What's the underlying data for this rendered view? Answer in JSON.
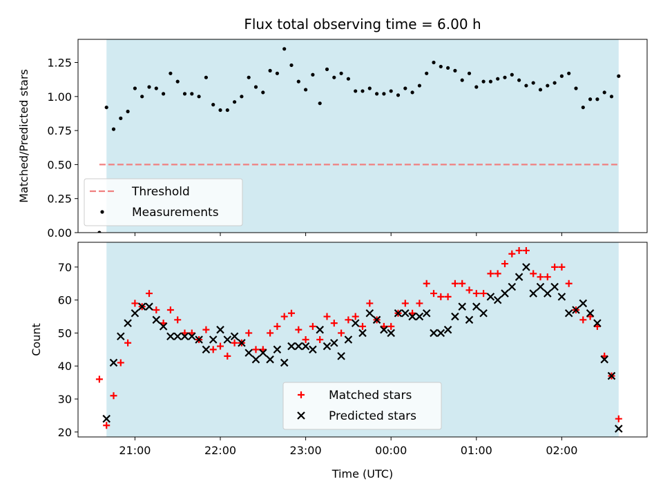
{
  "chart_data": [
    {
      "type": "scatter",
      "title": "Flux total observing time = 6.00 h",
      "ylabel": "Matched/Predicted stars",
      "xlabel": "",
      "xlim": [
        "2024-01-01T20:20",
        "2024-01-02T03:00"
      ],
      "ylim": [
        0,
        1.42
      ],
      "yticks": [
        0.0,
        0.25,
        0.5,
        0.75,
        1.0,
        1.25
      ],
      "yticklabels": [
        "0.00",
        "0.25",
        "0.50",
        "0.75",
        "1.00",
        "1.25"
      ],
      "shaded_region": [
        "2024-01-01T20:40",
        "2024-01-02T02:40"
      ],
      "shade_color": "#add8e6",
      "grid": false,
      "legend_position": "lower-left",
      "series": [
        {
          "name": "Threshold",
          "kind": "dashed-line",
          "color": "#f08080",
          "x": [
            "2024-01-01T20:35",
            "2024-01-02T02:40"
          ],
          "y": [
            0.5,
            0.5
          ]
        },
        {
          "name": "Measurements",
          "kind": "dot",
          "color": "#000000",
          "x": [
            "20:35",
            "20:40",
            "20:45",
            "20:50",
            "20:55",
            "21:00",
            "21:05",
            "21:10",
            "21:15",
            "21:20",
            "21:25",
            "21:30",
            "21:35",
            "21:40",
            "21:45",
            "21:50",
            "21:55",
            "22:00",
            "22:05",
            "22:10",
            "22:15",
            "22:20",
            "22:25",
            "22:30",
            "22:35",
            "22:40",
            "22:45",
            "22:50",
            "22:55",
            "23:00",
            "23:05",
            "23:10",
            "23:15",
            "23:20",
            "23:25",
            "23:30",
            "23:35",
            "23:40",
            "23:45",
            "23:50",
            "23:55",
            "00:00",
            "00:05",
            "00:10",
            "00:15",
            "00:20",
            "00:25",
            "00:30",
            "00:35",
            "00:40",
            "00:45",
            "00:50",
            "00:55",
            "01:00",
            "01:05",
            "01:10",
            "01:15",
            "01:20",
            "01:25",
            "01:30",
            "01:35",
            "01:40",
            "01:45",
            "01:50",
            "01:55",
            "02:00",
            "02:05",
            "02:10",
            "02:15",
            "02:20",
            "02:25",
            "02:30",
            "02:35",
            "02:40"
          ],
          "y": [
            0.0,
            0.92,
            0.76,
            0.84,
            0.89,
            1.06,
            1.0,
            1.07,
            1.06,
            1.02,
            1.17,
            1.11,
            1.02,
            1.02,
            1.0,
            1.14,
            0.94,
            0.9,
            0.9,
            0.96,
            1.0,
            1.14,
            1.07,
            1.03,
            1.19,
            1.17,
            1.35,
            1.23,
            1.11,
            1.05,
            1.16,
            0.95,
            1.2,
            1.14,
            1.17,
            1.13,
            1.04,
            1.04,
            1.06,
            1.02,
            1.02,
            1.04,
            1.01,
            1.06,
            1.03,
            1.08,
            1.17,
            1.25,
            1.22,
            1.21,
            1.19,
            1.12,
            1.17,
            1.07,
            1.11,
            1.11,
            1.13,
            1.14,
            1.16,
            1.12,
            1.08,
            1.1,
            1.05,
            1.08,
            1.1,
            1.15,
            1.17,
            1.06,
            0.92,
            0.98,
            0.98,
            1.03,
            1.0,
            1.15
          ]
        }
      ]
    },
    {
      "type": "scatter",
      "title": "",
      "ylabel": "Count",
      "xlabel": "Time (UTC)",
      "xlim": [
        "2024-01-01T20:20",
        "2024-01-02T03:00"
      ],
      "ylim": [
        18.5,
        77.5
      ],
      "yticks": [
        20,
        30,
        40,
        50,
        60,
        70
      ],
      "yticklabels": [
        "20",
        "30",
        "40",
        "50",
        "60",
        "70"
      ],
      "xticks": [
        "2024-01-01T21:00",
        "2024-01-01T22:00",
        "2024-01-01T23:00",
        "2024-01-02T00:00",
        "2024-01-02T01:00",
        "2024-01-02T02:00"
      ],
      "xticklabels": [
        "21:00",
        "22:00",
        "23:00",
        "00:00",
        "01:00",
        "02:00"
      ],
      "shaded_region": [
        "2024-01-01T20:40",
        "2024-01-02T02:40"
      ],
      "shade_color": "#add8e6",
      "grid": false,
      "legend_position": "lower-center",
      "series": [
        {
          "name": "Matched stars",
          "kind": "plus",
          "color": "#ff0000",
          "x": [
            "20:35",
            "20:40",
            "20:45",
            "20:50",
            "20:55",
            "21:00",
            "21:05",
            "21:10",
            "21:15",
            "21:20",
            "21:25",
            "21:30",
            "21:35",
            "21:40",
            "21:45",
            "21:50",
            "21:55",
            "22:00",
            "22:05",
            "22:10",
            "22:15",
            "22:20",
            "22:25",
            "22:30",
            "22:35",
            "22:40",
            "22:45",
            "22:50",
            "22:55",
            "23:00",
            "23:05",
            "23:10",
            "23:15",
            "23:20",
            "23:25",
            "23:30",
            "23:35",
            "23:40",
            "23:45",
            "23:50",
            "23:55",
            "00:00",
            "00:05",
            "00:10",
            "00:15",
            "00:20",
            "00:25",
            "00:30",
            "00:35",
            "00:40",
            "00:45",
            "00:50",
            "00:55",
            "01:00",
            "01:05",
            "01:10",
            "01:15",
            "01:20",
            "01:25",
            "01:30",
            "01:35",
            "01:40",
            "01:45",
            "01:50",
            "01:55",
            "02:00",
            "02:05",
            "02:10",
            "02:15",
            "02:20",
            "02:25",
            "02:30",
            "02:35",
            "02:40"
          ],
          "y": [
            36,
            22,
            31,
            41,
            47,
            59,
            58,
            62,
            57,
            53,
            57,
            54,
            50,
            50,
            48,
            51,
            45,
            46,
            43,
            47,
            47,
            50,
            45,
            45,
            50,
            52,
            55,
            56,
            51,
            48,
            52,
            48,
            55,
            53,
            50,
            54,
            55,
            52,
            59,
            54,
            52,
            52,
            56,
            59,
            56,
            59,
            65,
            62,
            61,
            61,
            65,
            65,
            63,
            62,
            62,
            68,
            68,
            71,
            74,
            75,
            75,
            68,
            67,
            67,
            70,
            70,
            65,
            57,
            54,
            55,
            52,
            43,
            37,
            24
          ]
        },
        {
          "name": "Predicted stars",
          "kind": "x",
          "color": "#000000",
          "x": [
            "20:40",
            "20:45",
            "20:50",
            "20:55",
            "21:00",
            "21:05",
            "21:10",
            "21:15",
            "21:20",
            "21:25",
            "21:30",
            "21:35",
            "21:40",
            "21:45",
            "21:50",
            "21:55",
            "22:00",
            "22:05",
            "22:10",
            "22:15",
            "22:20",
            "22:25",
            "22:30",
            "22:35",
            "22:40",
            "22:45",
            "22:50",
            "22:55",
            "23:00",
            "23:05",
            "23:10",
            "23:15",
            "23:20",
            "23:25",
            "23:30",
            "23:35",
            "23:40",
            "23:45",
            "23:50",
            "23:55",
            "00:00",
            "00:05",
            "00:10",
            "00:15",
            "00:20",
            "00:25",
            "00:30",
            "00:35",
            "00:40",
            "00:45",
            "00:50",
            "00:55",
            "01:00",
            "01:05",
            "01:10",
            "01:15",
            "01:20",
            "01:25",
            "01:30",
            "01:35",
            "01:40",
            "01:45",
            "01:50",
            "01:55",
            "02:00",
            "02:05",
            "02:10",
            "02:15",
            "02:20",
            "02:25",
            "02:30",
            "02:35",
            "02:40"
          ],
          "y": [
            24,
            41,
            49,
            53,
            56,
            58,
            58,
            54,
            52,
            49,
            49,
            49,
            49,
            48,
            45,
            48,
            51,
            48,
            49,
            47,
            44,
            42,
            44,
            42,
            45,
            41,
            46,
            46,
            46,
            45,
            51,
            46,
            47,
            43,
            48,
            53,
            50,
            56,
            54,
            51,
            50,
            56,
            56,
            55,
            55,
            56,
            50,
            50,
            51,
            55,
            58,
            54,
            58,
            56,
            61,
            60,
            62,
            64,
            67,
            70,
            62,
            64,
            62,
            64,
            61,
            56,
            57,
            59,
            56,
            53,
            42,
            37,
            21
          ]
        }
      ]
    }
  ]
}
